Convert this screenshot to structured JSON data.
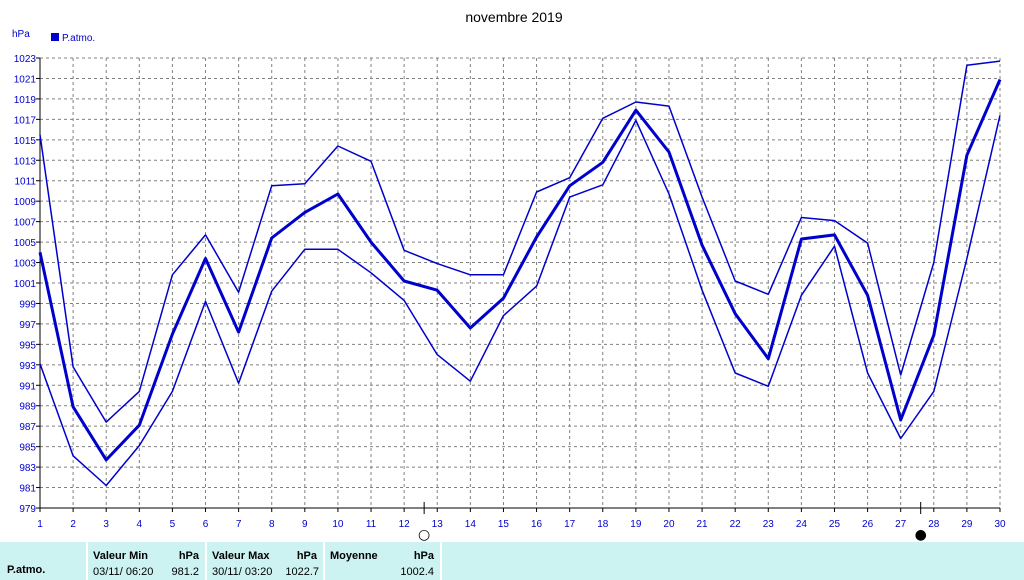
{
  "chart_data": {
    "type": "line",
    "title": "novembre 2019",
    "ylabel": "hPa",
    "legend": "P.atmo.",
    "legend_position": "top-left",
    "grid": true,
    "colors": {
      "series": "#0000cc",
      "axis": "#000000",
      "grid": "#808080"
    },
    "ylim": [
      979,
      1023
    ],
    "yticks": [
      979,
      981,
      983,
      985,
      987,
      989,
      991,
      993,
      995,
      997,
      999,
      1001,
      1003,
      1005,
      1007,
      1009,
      1011,
      1013,
      1015,
      1017,
      1019,
      1021,
      1023
    ],
    "x": [
      1,
      2,
      3,
      4,
      5,
      6,
      7,
      8,
      9,
      10,
      11,
      12,
      13,
      14,
      15,
      16,
      17,
      18,
      19,
      20,
      21,
      22,
      23,
      24,
      25,
      26,
      27,
      28,
      29,
      30
    ],
    "series": [
      {
        "name": "",
        "role": "max",
        "values": [
          1015.5,
          992.8,
          987.4,
          990.4,
          1001.8,
          1005.7,
          1000.1,
          1010.5,
          1010.7,
          1014.4,
          1012.9,
          1004.2,
          1002.9,
          1001.8,
          1001.8,
          1009.9,
          1011.3,
          1017.1,
          1018.7,
          1018.3,
          1009.4,
          1001.2,
          999.9,
          1007.4,
          1007.1,
          1004.9,
          992.0,
          1003.0,
          1022.3,
          1022.7
        ]
      },
      {
        "name": "P.atmo.",
        "role": "mean",
        "values": [
          1004.0,
          988.9,
          983.7,
          987.1,
          996.0,
          1003.4,
          996.2,
          1005.4,
          1007.9,
          1009.7,
          1005.0,
          1001.2,
          1000.3,
          996.6,
          999.5,
          1005.5,
          1010.5,
          1012.8,
          1017.9,
          1013.8,
          1004.7,
          998.0,
          993.6,
          1005.3,
          1005.7,
          999.8,
          987.6,
          995.9,
          1013.5,
          1020.9
        ]
      },
      {
        "name": "",
        "role": "min",
        "values": [
          993.1,
          984.1,
          981.2,
          985.1,
          990.4,
          999.2,
          991.2,
          1000.2,
          1004.3,
          1004.3,
          1002.0,
          999.3,
          994.0,
          991.4,
          997.8,
          1000.7,
          1009.4,
          1010.6,
          1016.9,
          1009.7,
          1000.3,
          992.2,
          990.9,
          999.8,
          1004.6,
          992.2,
          985.8,
          990.4,
          1003.4,
          1017.4
        ]
      }
    ],
    "moon_phases": [
      {
        "day": 12,
        "symbol": "○"
      },
      {
        "day": 27,
        "symbol": "●"
      }
    ]
  },
  "footer": {
    "row_label": "P.atmo.",
    "min": {
      "header": "Valeur Min",
      "unit": "hPa",
      "date": "03/11/  06:20",
      "value": "981.2"
    },
    "max": {
      "header": "Valeur Max",
      "unit": "hPa",
      "date": "30/11/  03:20",
      "value": "1022.7"
    },
    "avg": {
      "header": "Moyenne",
      "unit": "hPa",
      "value": "1002.4"
    }
  }
}
